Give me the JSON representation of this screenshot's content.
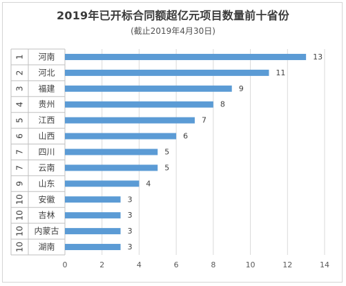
{
  "chart_data": {
    "type": "bar",
    "orientation": "horizontal",
    "title": "2019年已开标合同额超亿元项目数量前十省份",
    "subtitle": "(截止2019年4月30日)",
    "ranks": [
      "1",
      "2",
      "3",
      "4",
      "5",
      "6",
      "7",
      "7",
      "9",
      "10",
      "10",
      "10",
      "10"
    ],
    "categories": [
      "河南",
      "河北",
      "福建",
      "贵州",
      "江西",
      "山西",
      "四川",
      "云南",
      "山东",
      "安徽",
      "吉林",
      "内蒙古",
      "湖南"
    ],
    "values": [
      13,
      11,
      9,
      8,
      7,
      6,
      5,
      5,
      4,
      3,
      3,
      3,
      3
    ],
    "xlim": [
      0,
      14
    ],
    "xticks": [
      0,
      2,
      4,
      6,
      8,
      10,
      12,
      14
    ],
    "grid": true,
    "bar_color": "#5b9bd5",
    "grid_color": "#d9d9d9"
  }
}
